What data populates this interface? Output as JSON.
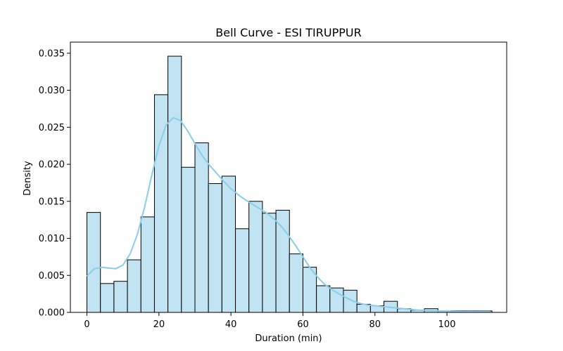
{
  "chart_data": {
    "type": "bar",
    "title": "Bell Curve - ESI TIRUPPUR",
    "xlabel": "Duration (min)",
    "ylabel": "Density",
    "xlim": [
      -4.6,
      116.6
    ],
    "ylim": [
      0,
      0.0365
    ],
    "x_ticks": [
      0,
      20,
      40,
      60,
      80,
      100
    ],
    "y_ticks": [
      0.0,
      0.005,
      0.01,
      0.015,
      0.02,
      0.025,
      0.03,
      0.035
    ],
    "y_tick_labels": [
      "0.000",
      "0.005",
      "0.010",
      "0.015",
      "0.020",
      "0.025",
      "0.030",
      "0.035"
    ],
    "x_tick_labels": [
      "0",
      "20",
      "40",
      "60",
      "80",
      "100"
    ],
    "grid": false,
    "bin_edges": [
      0,
      3.75,
      7.5,
      11.25,
      15,
      18.75,
      22.5,
      26.25,
      30,
      33.75,
      37.5,
      41.25,
      45,
      48.75,
      52.5,
      56.25,
      60,
      63.75,
      67.5,
      71.25,
      75,
      78.75,
      82.5,
      86.25,
      90,
      93.75,
      97.5,
      101.25,
      105,
      108.75,
      112.5
    ],
    "values": [
      0.0135,
      0.0039,
      0.0042,
      0.0071,
      0.0129,
      0.0294,
      0.0346,
      0.0196,
      0.0229,
      0.0174,
      0.0184,
      0.0113,
      0.015,
      0.0134,
      0.0138,
      0.0079,
      0.0061,
      0.0036,
      0.0033,
      0.003,
      0.0011,
      0.0009,
      0.0015,
      0.0005,
      0.0003,
      0.0005,
      0.0002,
      0.0002,
      0.0002,
      0.0002
    ],
    "kde": {
      "x": [
        0,
        2,
        4,
        6,
        8,
        10,
        12,
        14,
        16,
        18,
        20,
        22,
        24,
        26,
        28,
        30,
        32,
        34,
        36,
        38,
        40,
        42,
        44,
        46,
        48,
        50,
        52,
        54,
        56,
        58,
        60,
        62,
        64,
        66,
        68,
        70,
        72,
        74,
        76,
        78,
        80,
        82,
        84,
        86,
        88,
        90,
        92,
        94,
        96,
        98,
        100,
        102,
        104,
        106,
        108,
        110,
        112
      ],
      "y": [
        0.0049,
        0.0059,
        0.0061,
        0.006,
        0.0059,
        0.0064,
        0.0079,
        0.0105,
        0.0142,
        0.0185,
        0.0225,
        0.0253,
        0.0263,
        0.0259,
        0.0245,
        0.0228,
        0.0212,
        0.0199,
        0.0188,
        0.0177,
        0.0167,
        0.0159,
        0.0152,
        0.0146,
        0.014,
        0.0134,
        0.0126,
        0.0116,
        0.0104,
        0.009,
        0.0075,
        0.006,
        0.0048,
        0.0038,
        0.0031,
        0.0025,
        0.002,
        0.0015,
        0.0012,
        0.001,
        0.0009,
        0.0008,
        0.0007,
        0.0006,
        0.0005,
        0.0004,
        0.0003,
        0.00025,
        0.0002,
        0.00018,
        0.00015,
        0.00012,
        0.0001,
        0.0001,
        0.0001,
        0.0001,
        0.0001
      ]
    },
    "colors": {
      "bar_fill": "#c2e3f1",
      "bar_edge": "#000000",
      "kde_line": "#87ceeb"
    }
  }
}
